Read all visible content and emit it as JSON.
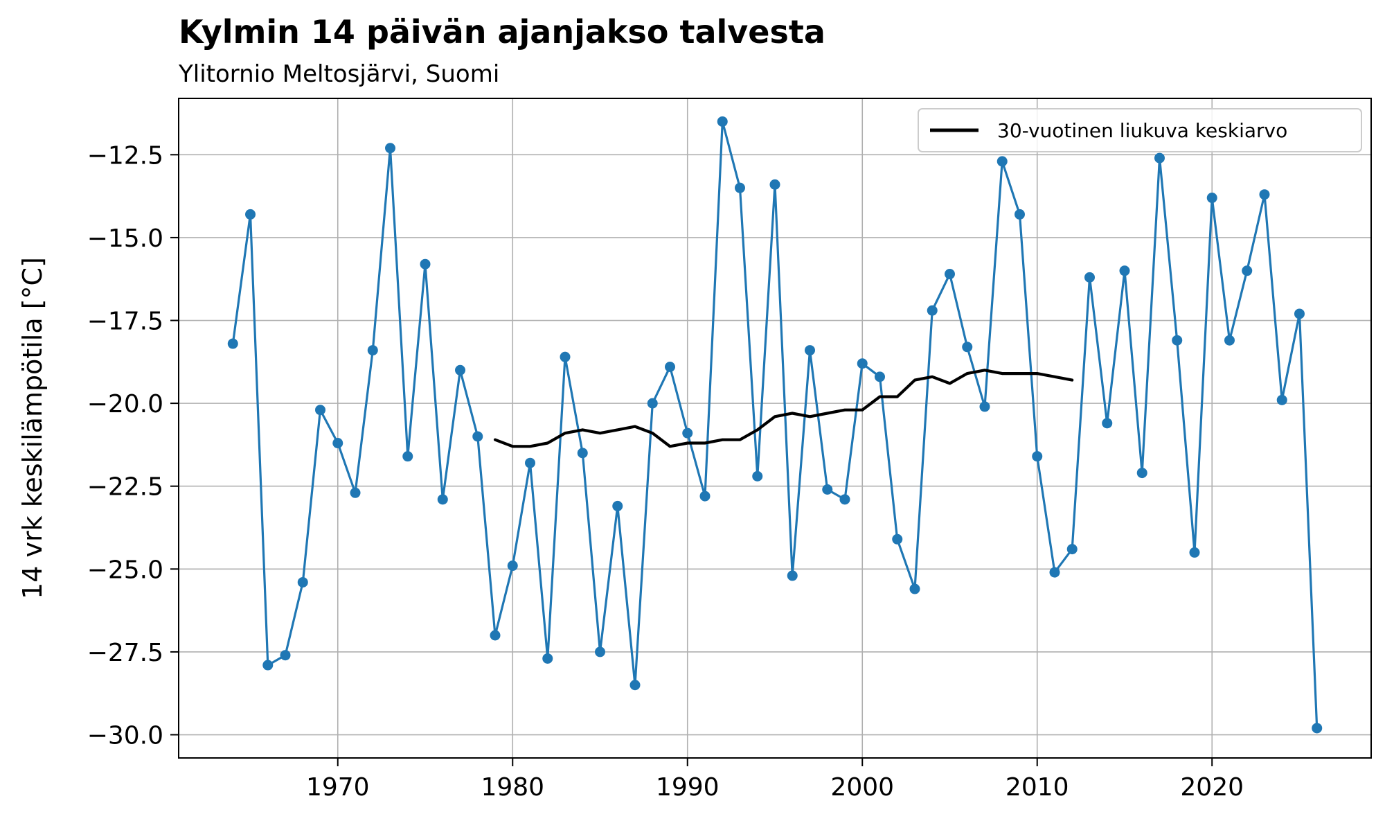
{
  "chart_data": {
    "type": "line",
    "title": "Kylmin 14 päivän ajanjakso talvesta",
    "subtitle": "Ylitornio Meltosjärvi, Suomi",
    "xlabel": "",
    "ylabel": "14 vrk keskilämpötila [°C]",
    "xlim": [
      1960.9,
      2029.1
    ],
    "ylim": [
      -30.7,
      -10.8
    ],
    "xticks": [
      1970,
      1980,
      1990,
      2000,
      2010,
      2020
    ],
    "yticks": [
      -12.5,
      -15.0,
      -17.5,
      -20.0,
      -22.5,
      -25.0,
      -27.5,
      -30.0
    ],
    "ytick_labels": [
      "−12.5",
      "−15.0",
      "−17.5",
      "−20.0",
      "−22.5",
      "−25.0",
      "−27.5",
      "−30.0"
    ],
    "grid": true,
    "legend_position": "upper-right",
    "series": [
      {
        "name": "",
        "color": "#1f77b4",
        "marker": "circle",
        "points": [
          [
            1964,
            -18.2
          ],
          [
            1965,
            -14.3
          ],
          [
            1966,
            -27.9
          ],
          [
            1967,
            -27.6
          ],
          [
            1968,
            -25.4
          ],
          [
            1969,
            -20.2
          ],
          [
            1970,
            -21.2
          ],
          [
            1971,
            -22.7
          ],
          [
            1972,
            -18.4
          ],
          [
            1973,
            -12.3
          ],
          [
            1974,
            -21.6
          ],
          [
            1975,
            -15.8
          ],
          [
            1976,
            -22.9
          ],
          [
            1977,
            -19.0
          ],
          [
            1978,
            -21.0
          ],
          [
            1979,
            -27.0
          ],
          [
            1980,
            -24.9
          ],
          [
            1981,
            -21.8
          ],
          [
            1982,
            -27.7
          ],
          [
            1983,
            -18.6
          ],
          [
            1984,
            -21.5
          ],
          [
            1985,
            -27.5
          ],
          [
            1986,
            -23.1
          ],
          [
            1987,
            -28.5
          ],
          [
            1988,
            -20.0
          ],
          [
            1989,
            -18.9
          ],
          [
            1990,
            -20.9
          ],
          [
            1991,
            -22.8
          ],
          [
            1992,
            -11.5
          ],
          [
            1993,
            -13.5
          ],
          [
            1994,
            -22.2
          ],
          [
            1995,
            -13.4
          ],
          [
            1996,
            -25.2
          ],
          [
            1997,
            -18.4
          ],
          [
            1998,
            -22.6
          ],
          [
            1999,
            -22.9
          ],
          [
            2000,
            -18.8
          ],
          [
            2001,
            -19.2
          ],
          [
            2002,
            -24.1
          ],
          [
            2003,
            -25.6
          ],
          [
            2004,
            -17.2
          ],
          [
            2005,
            -16.1
          ],
          [
            2006,
            -18.3
          ],
          [
            2007,
            -20.1
          ],
          [
            2008,
            -12.7
          ],
          [
            2009,
            -14.3
          ],
          [
            2010,
            -21.6
          ],
          [
            2011,
            -25.1
          ],
          [
            2012,
            -24.4
          ],
          [
            2013,
            -16.2
          ],
          [
            2014,
            -20.6
          ],
          [
            2015,
            -16.0
          ],
          [
            2016,
            -22.1
          ],
          [
            2017,
            -12.6
          ],
          [
            2018,
            -18.1
          ],
          [
            2019,
            -24.5
          ],
          [
            2020,
            -13.8
          ],
          [
            2021,
            -18.1
          ],
          [
            2022,
            -16.0
          ],
          [
            2023,
            -13.7
          ],
          [
            2024,
            -19.9
          ],
          [
            2025,
            -17.3
          ],
          [
            2026,
            -29.8
          ]
        ]
      },
      {
        "name": "30-vuotinen liukuva keskiarvo",
        "color": "#000000",
        "marker": "none",
        "points": [
          [
            1979,
            -21.1
          ],
          [
            1980,
            -21.3
          ],
          [
            1981,
            -21.3
          ],
          [
            1982,
            -21.2
          ],
          [
            1983,
            -20.9
          ],
          [
            1984,
            -20.8
          ],
          [
            1985,
            -20.9
          ],
          [
            1986,
            -20.8
          ],
          [
            1987,
            -20.7
          ],
          [
            1988,
            -20.9
          ],
          [
            1989,
            -21.3
          ],
          [
            1990,
            -21.2
          ],
          [
            1991,
            -21.2
          ],
          [
            1992,
            -21.1
          ],
          [
            1993,
            -21.1
          ],
          [
            1994,
            -20.8
          ],
          [
            1995,
            -20.4
          ],
          [
            1996,
            -20.3
          ],
          [
            1997,
            -20.4
          ],
          [
            1998,
            -20.3
          ],
          [
            1999,
            -20.2
          ],
          [
            2000,
            -20.2
          ],
          [
            2001,
            -19.8
          ],
          [
            2002,
            -19.8
          ],
          [
            2003,
            -19.3
          ],
          [
            2004,
            -19.2
          ],
          [
            2005,
            -19.4
          ],
          [
            2006,
            -19.1
          ],
          [
            2007,
            -19.0
          ],
          [
            2008,
            -19.1
          ],
          [
            2009,
            -19.1
          ],
          [
            2010,
            -19.1
          ],
          [
            2011,
            -19.2
          ],
          [
            2012,
            -19.3
          ]
        ]
      }
    ]
  }
}
